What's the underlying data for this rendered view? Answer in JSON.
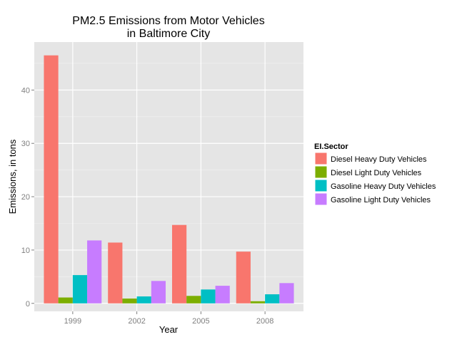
{
  "chart_data": {
    "type": "bar",
    "title_lines": [
      "PM2.5 Emissions from Motor Vehicles",
      "in Baltimore City"
    ],
    "xlabel": "Year",
    "ylabel": "Emissions, in tons",
    "categories": [
      "1999",
      "2002",
      "2005",
      "2008"
    ],
    "ylim": [
      -1.5,
      49
    ],
    "yticks": [
      0,
      10,
      20,
      30,
      40
    ],
    "grid": true,
    "legend": {
      "title": "EI.Sector",
      "position": "right"
    },
    "series": [
      {
        "name": "Diesel Heavy Duty Vehicles",
        "color": "#F8766D",
        "values": [
          46.5,
          11.4,
          14.7,
          9.7
        ]
      },
      {
        "name": "Diesel Light Duty Vehicles",
        "color": "#7CAE00",
        "values": [
          1.1,
          0.9,
          1.4,
          0.4
        ]
      },
      {
        "name": "Gasoline Heavy Duty Vehicles",
        "color": "#00BFC4",
        "values": [
          5.3,
          1.3,
          2.6,
          1.7
        ]
      },
      {
        "name": "Gasoline Light Duty Vehicles",
        "color": "#C77CFF",
        "values": [
          11.8,
          4.2,
          3.3,
          3.8
        ]
      }
    ]
  }
}
